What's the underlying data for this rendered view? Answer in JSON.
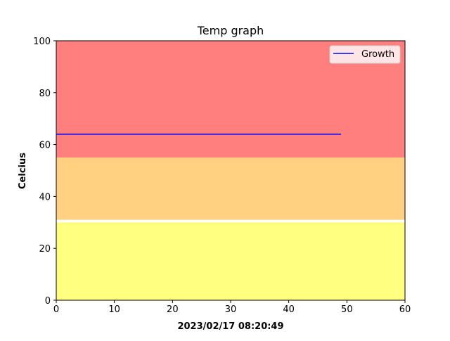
{
  "chart_data": {
    "type": "line",
    "title": "Temp graph",
    "xlabel": "2023/02/17 08:20:49",
    "ylabel": "Celcius",
    "xlim": [
      0,
      60
    ],
    "ylim": [
      0,
      100
    ],
    "xticks": [
      0,
      10,
      20,
      30,
      40,
      50,
      60
    ],
    "yticks": [
      0,
      20,
      40,
      60,
      80,
      100
    ],
    "grid": false,
    "legend_position": "top-right",
    "bands": [
      {
        "y0": 0,
        "y1": 30,
        "color": "#ffff7f"
      },
      {
        "y0": 31,
        "y1": 55,
        "color": "#ffd080"
      },
      {
        "y0": 55,
        "y1": 100,
        "color": "#ff7f7f"
      }
    ],
    "series": [
      {
        "name": "Growth",
        "color": "#0000ff",
        "x": [
          0,
          49
        ],
        "y": [
          64,
          64
        ]
      }
    ]
  }
}
